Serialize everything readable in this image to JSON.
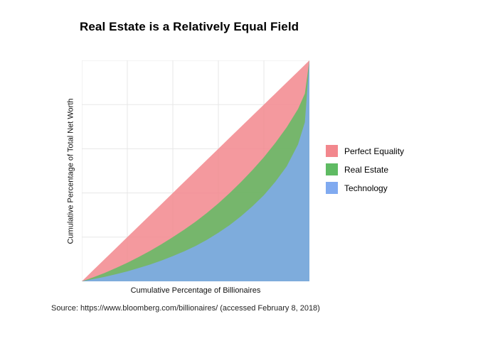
{
  "title": "Real Estate is a Relatively Equal Field",
  "axes": {
    "x_label": "Cumulative Percentage of Billionaires",
    "y_label": "Cumulative Percentage of Total Net Worth"
  },
  "source": "Source: https://www.bloomberg.com/billionaires/ (accessed February 8, 2018)",
  "legend": [
    {
      "label": "Perfect Equality",
      "color": "#F2878D"
    },
    {
      "label": "Real Estate",
      "color": "#5FBB63"
    },
    {
      "label": "Technology",
      "color": "#80AAF0"
    }
  ],
  "chart_data": {
    "type": "area",
    "title": "Real Estate is a Relatively Equal Field",
    "xlabel": "Cumulative Percentage of Billionaires",
    "ylabel": "Cumulative Percentage of Total Net Worth",
    "xlim": [
      0,
      100
    ],
    "ylim": [
      0,
      100
    ],
    "grid": true,
    "grid_ticks": [
      0,
      20,
      40,
      60,
      80,
      100
    ],
    "legend_position": "right",
    "x": [
      0,
      5,
      10,
      15,
      20,
      25,
      30,
      35,
      40,
      45,
      50,
      55,
      60,
      65,
      70,
      75,
      80,
      85,
      90,
      95,
      98,
      100
    ],
    "series": [
      {
        "name": "Perfect Equality",
        "color": "#F2878D",
        "values": [
          0,
          5,
          10,
          15,
          20,
          25,
          30,
          35,
          40,
          45,
          50,
          55,
          60,
          65,
          70,
          75,
          80,
          85,
          90,
          95,
          98,
          100
        ]
      },
      {
        "name": "Real Estate",
        "color": "#5FBB63",
        "values": [
          0,
          1.8,
          3.8,
          6,
          8.4,
          11,
          13.8,
          16.8,
          20,
          23.4,
          27,
          31,
          35.3,
          40,
          45,
          50.4,
          56.2,
          62.6,
          69.7,
          78,
          85,
          100
        ]
      },
      {
        "name": "Technology",
        "color": "#80AAF0",
        "values": [
          0,
          1,
          2,
          3.2,
          4.5,
          6,
          7.6,
          9.4,
          11.4,
          13.6,
          16,
          18.8,
          22,
          25.5,
          29.5,
          34,
          39,
          45,
          52,
          62,
          72,
          100
        ]
      }
    ]
  }
}
